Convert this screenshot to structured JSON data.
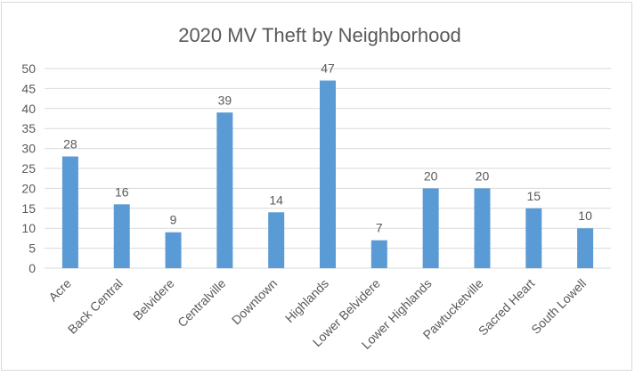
{
  "chart_data": {
    "type": "bar",
    "title": "2020 MV Theft by Neighborhood",
    "xlabel": "",
    "ylabel": "",
    "categories": [
      "Acre",
      "Back Central",
      "Belvidere",
      "Centralville",
      "Downtown",
      "Highlands",
      "Lower Belvidere",
      "Lower Highlands",
      "Pawtucketville",
      "Sacred Heart",
      "South Lowell"
    ],
    "values": [
      28,
      16,
      9,
      39,
      14,
      47,
      7,
      20,
      20,
      15,
      10
    ],
    "ylim": [
      0,
      50
    ],
    "yticks": [
      0,
      5,
      10,
      15,
      20,
      25,
      30,
      35,
      40,
      45,
      50
    ],
    "grid": true,
    "legend": "none",
    "data_labels": true,
    "colors": {
      "bar": "#5b9bd5",
      "grid": "#d9d9d9",
      "text": "#595959",
      "title": "#595959"
    }
  }
}
